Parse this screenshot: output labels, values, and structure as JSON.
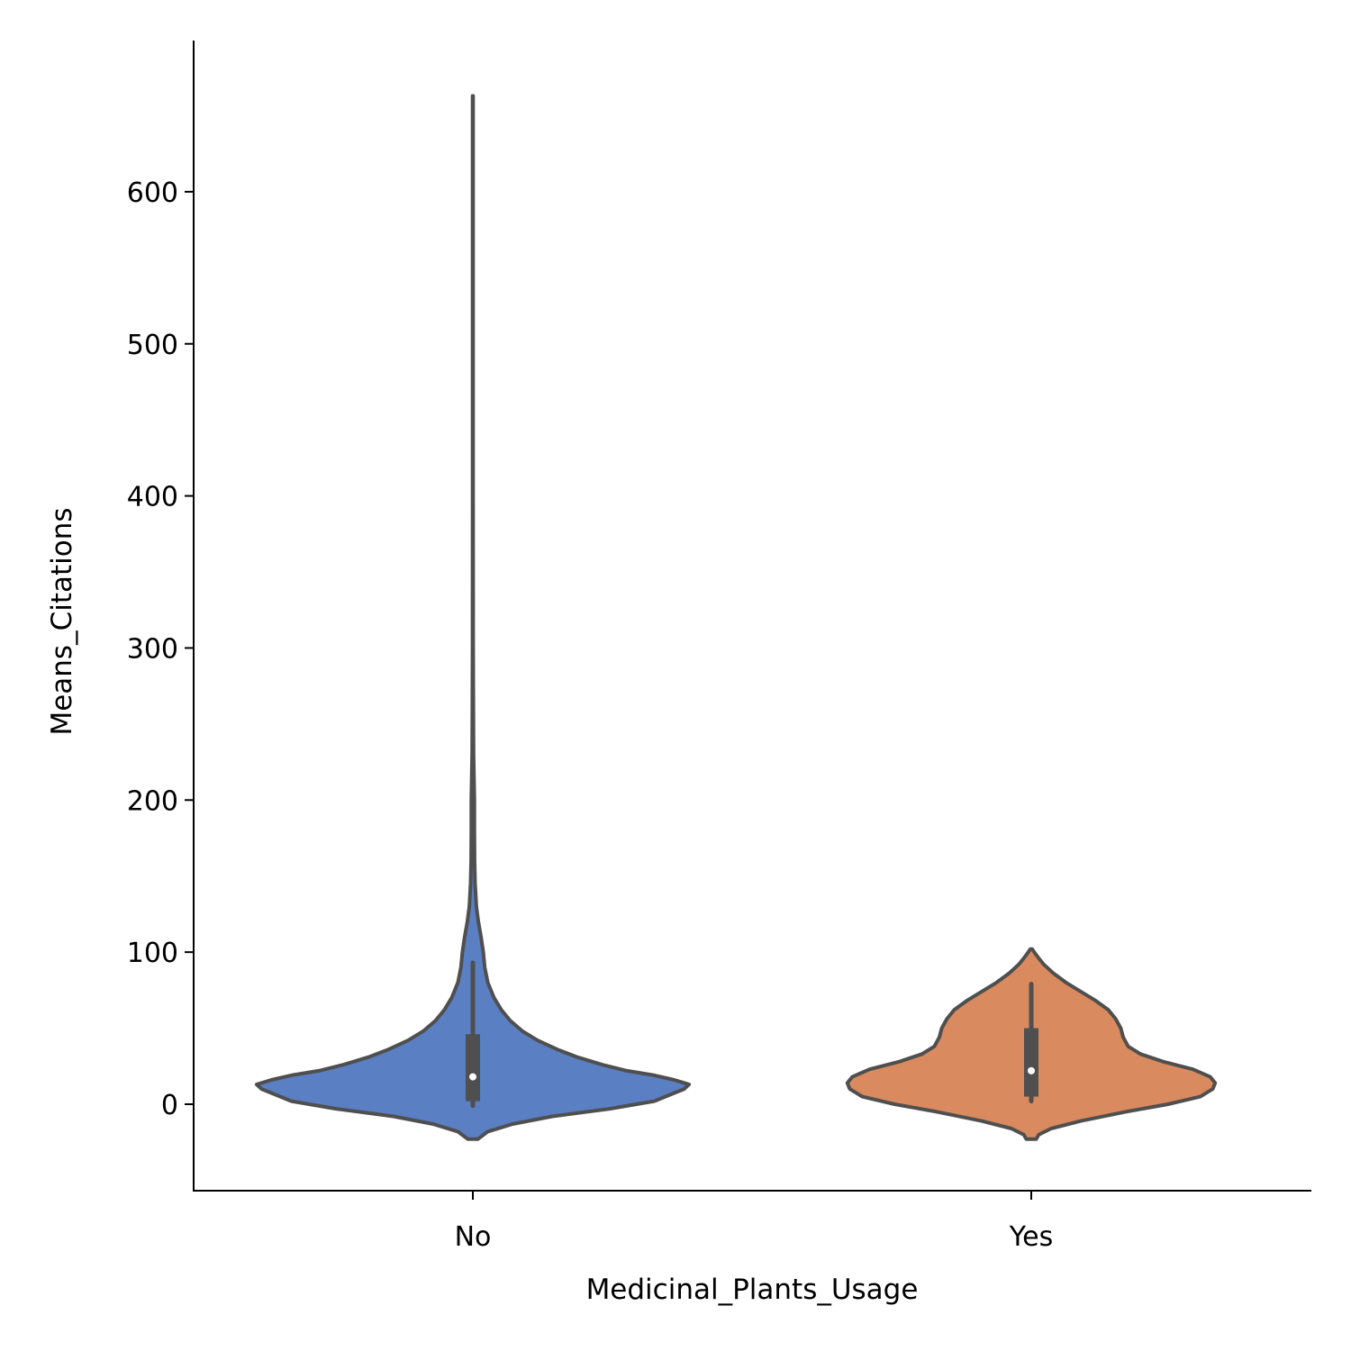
{
  "chart_data": {
    "type": "violin",
    "title": "",
    "xlabel": "Medicinal_Plants_Usage",
    "ylabel": "Means_Citations",
    "categories": [
      "No",
      "Yes"
    ],
    "ylim": [
      -57,
      697
    ],
    "yticks": [
      0,
      100,
      200,
      300,
      400,
      500,
      600
    ],
    "grid": false,
    "legend": "none",
    "violins": [
      {
        "category": "No",
        "color": "#5a7fc3",
        "median": 18,
        "q1": 2,
        "q3": 46,
        "whisker_low": -1,
        "whisker_high": 93,
        "density": [
          [
            -23,
            0.02
          ],
          [
            -18,
            0.06
          ],
          [
            -13,
            0.16
          ],
          [
            -8,
            0.32
          ],
          [
            -3,
            0.55
          ],
          [
            2,
            0.73
          ],
          [
            6,
            0.79
          ],
          [
            10,
            0.85
          ],
          [
            13,
            0.87
          ],
          [
            16,
            0.81
          ],
          [
            19,
            0.73
          ],
          [
            22,
            0.62
          ],
          [
            26,
            0.52
          ],
          [
            31,
            0.42
          ],
          [
            36,
            0.34
          ],
          [
            42,
            0.26
          ],
          [
            48,
            0.2
          ],
          [
            55,
            0.15
          ],
          [
            62,
            0.115
          ],
          [
            70,
            0.085
          ],
          [
            80,
            0.06
          ],
          [
            90,
            0.048
          ],
          [
            100,
            0.042
          ],
          [
            110,
            0.033
          ],
          [
            120,
            0.022
          ],
          [
            130,
            0.014
          ],
          [
            145,
            0.009
          ],
          [
            160,
            0.007
          ],
          [
            180,
            0.006
          ],
          [
            200,
            0.006
          ],
          [
            210,
            0.005
          ],
          [
            230,
            0.003
          ],
          [
            260,
            0.002
          ],
          [
            300,
            0.0016
          ],
          [
            400,
            0.0012
          ],
          [
            500,
            0.001
          ],
          [
            600,
            0.001
          ],
          [
            663,
            0.001
          ]
        ]
      },
      {
        "category": "Yes",
        "color": "#d98a5e",
        "median": 22,
        "q1": 5,
        "q3": 50,
        "whisker_low": 2,
        "whisker_high": 79,
        "density": [
          [
            -23,
            0.02
          ],
          [
            -20,
            0.03
          ],
          [
            -16,
            0.08
          ],
          [
            -11,
            0.2
          ],
          [
            -5,
            0.38
          ],
          [
            0,
            0.55
          ],
          [
            5,
            0.68
          ],
          [
            10,
            0.73
          ],
          [
            14,
            0.74
          ],
          [
            18,
            0.72
          ],
          [
            23,
            0.65
          ],
          [
            28,
            0.53
          ],
          [
            33,
            0.44
          ],
          [
            38,
            0.39
          ],
          [
            44,
            0.37
          ],
          [
            50,
            0.36
          ],
          [
            56,
            0.34
          ],
          [
            62,
            0.31
          ],
          [
            68,
            0.26
          ],
          [
            74,
            0.2
          ],
          [
            80,
            0.14
          ],
          [
            86,
            0.09
          ],
          [
            92,
            0.05
          ],
          [
            96,
            0.03
          ],
          [
            100,
            0.012
          ],
          [
            102,
            0.004
          ]
        ]
      }
    ]
  }
}
